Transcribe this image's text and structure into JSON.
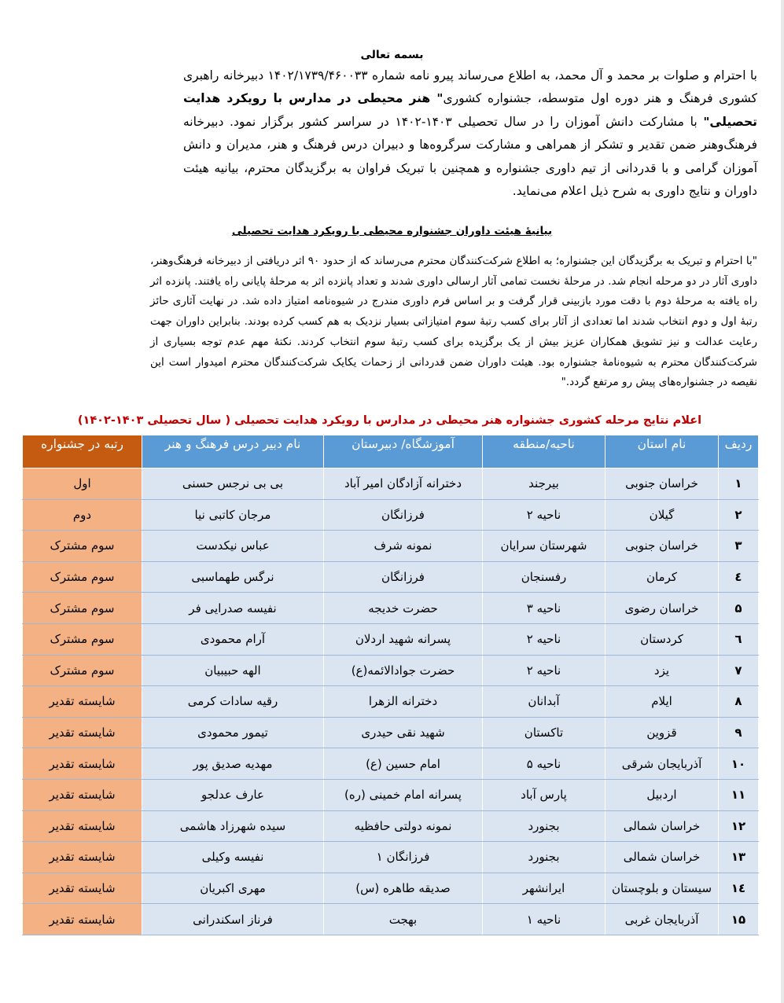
{
  "heading": "بسمه تعالی",
  "intro": {
    "part1": "با احترام و صلوات بر محمد و آل محمد، به اطلاع می‌رساند پیرو نامه شماره ۱۴۰۲/۱۷۳۹/۴۶۰۰۳۳ دبیرخانه راهبری کشوری فرهنگ و هنر دوره اول متوسطه، جشنواره کشوری",
    "bold": "\" هنر محیطی در مدارس با رویکرد هدایت تحصیلی\"",
    "part2": " با مشارکت دانش آموزان را در سال تحصیلی ۱۴۰۳-۱۴۰۲ در سراسر کشور برگزار نمود. دبیرخانه فرهنگ‌وهنر ضمن تقدیر و تشکر از همراهی و مشارکت سرگروه‌ها و دبیران درس فرهنگ و هنر، مدیران و دانش آموزان گرامی و با قدردانی از تیم داوری جشنواره و همچنین با تبریک فراوان به برگزیدگان محترم، بیانیه هیئت داوران و نتایج داوری به شرح ذیل اعلام می‌نماید."
  },
  "subtitle": "بیانیهٔ هیئت داوران جشنواره محیطی با رویکرد هدایت تحصیلی",
  "statement": "\"با احترام و تبریک به برگزیدگان این جشنواره؛ به اطلاع شرکت‌کنندگان محترم می‌رساند که از حدود ۹۰ اثر دریافتی از دبیرخانه فرهنگ‌وهنر، داوری آثار در دو مرحله انجام شد. در مرحلهٔ نخست تمامی آثار ارسالی داوری شدند و تعداد پانزده اثر به مرحلهٔ پایانی راه یافتند. پانزده اثر راه یافته به مرحلهٔ دوم با دقت مورد بازبینی قرار گرفت و بر اساس فرم داوری مندرج در شیوه‌نامه امتیاز داده شد. در نهایت آثاری حائز رتبهٔ اول و دوم انتخاب شدند اما تعدادی از آثار برای کسب رتبهٔ سوم امتیازاتی بسیار نزدیک به هم کسب کرده بودند. بنابراین داوران جهت رعایت عدالت و نیز تشویق همکاران عزیز بیش از یک برگزیده برای کسب رتبهٔ سوم انتخاب کردند. نکتهٔ مهم عدم توجه بسیاری از شرکت‌کنندگان محترم به شیوه‌نامهٔ جشنواره بود. هیئت داوران ضمن قدردانی از زحمات یکایک شرکت‌کنندگان محترم امیدوار است این نقیصه در جشنواره‌های پیش رو مرتفع گردد.\"",
  "table": {
    "title": "اعلام نتایج مرحله کشوری جشنواره هنر محیطی در مدارس با رویکرد هدایت تحصیلی ( سال تحصیلی ۱۴۰۳-۱۴۰۲)",
    "headers": [
      "ردیف",
      "نام استان",
      "ناحیه/منطقه",
      "آموزشگاه/ دبیرستان",
      "نام دبیر درس فرهنگ و هنر",
      "رتبه در جشنواره"
    ],
    "rows": [
      [
        "۱",
        "خراسان جنوبی",
        "بیرجند",
        "دخترانه آزادگان امیر آباد",
        "بی بی نرجس حسنی",
        "اول"
      ],
      [
        "۲",
        "گیلان",
        "ناحیه ۲",
        "فرزانگان",
        "مرجان کاتبی نیا",
        "دوم"
      ],
      [
        "۳",
        "خراسان جنوبی",
        "شهرستان سرایان",
        "نمونه شرف",
        "عباس نیکدست",
        "سوم مشترک"
      ],
      [
        "٤",
        "کرمان",
        "رفسنجان",
        "فرزانگان",
        "نرگس طهماسبی",
        "سوم مشترک"
      ],
      [
        "۵",
        "خراسان رضوی",
        "ناحیه ۳",
        "حضرت خدیجه",
        "نفیسه صدرایی فر",
        "سوم مشترک"
      ],
      [
        "٦",
        "کردستان",
        "ناحیه ۲",
        "پسرانه شهید اردلان",
        "آرام محمودی",
        "سوم مشترک"
      ],
      [
        "۷",
        "یزد",
        "ناحیه ۲",
        "حضرت جوادالائمه(ع)",
        "الهه حبیبیان",
        "سوم مشترک"
      ],
      [
        "۸",
        "ایلام",
        "آبدانان",
        "دخترانه الزهرا",
        "رقیه سادات کرمی",
        "شایسته تقدیر"
      ],
      [
        "۹",
        "قزوین",
        "تاکستان",
        "شهید نقی حیدری",
        "تیمور محمودی",
        "شایسته تقدیر"
      ],
      [
        "۱۰",
        "آذربایجان شرقی",
        "ناحیه ۵",
        "امام حسین (ع)",
        "مهدیه صدیق پور",
        "شایسته تقدیر"
      ],
      [
        "۱۱",
        "اردبیل",
        "پارس آباد",
        "پسرانه امام خمینی (ره)",
        "عارف عدلجو",
        "شایسته تقدیر"
      ],
      [
        "۱۲",
        "خراسان شمالی",
        "بجنورد",
        "نمونه دولتی حافظیه",
        "سیده شهرزاد هاشمی",
        "شایسته تقدیر"
      ],
      [
        "۱۳",
        "خراسان شمالی",
        "بجنورد",
        "فرزانگان ۱",
        "نفیسه وکیلی",
        "شایسته تقدیر"
      ],
      [
        "۱٤",
        "سیستان و بلوچستان",
        "ایرانشهر",
        "صدیقه طاهره (س)",
        "مهری اکبریان",
        "شایسته تقدیر"
      ],
      [
        "۱۵",
        "آذربایجان غربی",
        "ناحیه ۱",
        "بهجت",
        "فرناز اسکندرانی",
        "شایسته تقدیر"
      ]
    ]
  },
  "colors": {
    "header_blue": "#5b9bd5",
    "header_rank": "#c55a11",
    "cell_blue": "#dbe5f1",
    "cell_rank": "#f4b183",
    "title_red": "#c00000"
  }
}
